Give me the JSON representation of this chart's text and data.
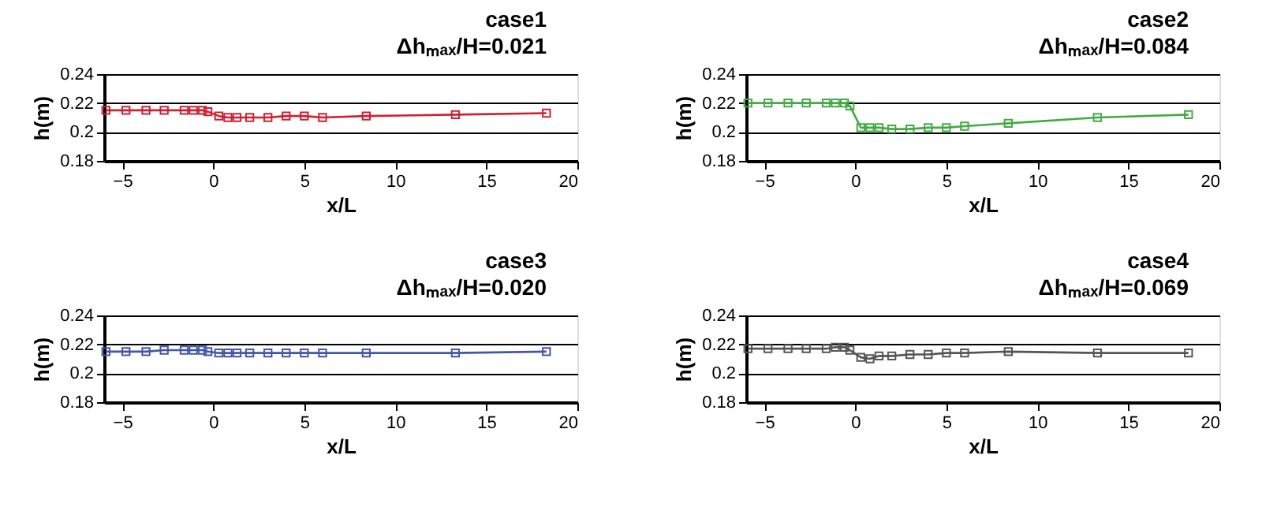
{
  "chart_data": [
    {
      "type": "line",
      "title": "case1",
      "subtitle": "Δhₘₐₓ/H=0.021",
      "xlabel": "x/L",
      "ylabel": "h(m)",
      "xlim": [
        -6,
        20
      ],
      "ylim": [
        0.18,
        0.24
      ],
      "xticks": [
        -5,
        0,
        5,
        10,
        15,
        20
      ],
      "yticks": [
        0.18,
        0.2,
        0.22,
        0.24
      ],
      "grid": "y",
      "marker": "square",
      "line_style": "solid",
      "series": [
        {
          "color": "#cc2233",
          "x": [
            -5.9,
            -4.8,
            -3.7,
            -2.7,
            -1.6,
            -1.1,
            -0.6,
            -0.3,
            0.3,
            0.8,
            1.3,
            2,
            3,
            4,
            5,
            6,
            8.4,
            13.3,
            18.3
          ],
          "values": [
            0.215,
            0.215,
            0.215,
            0.215,
            0.215,
            0.215,
            0.215,
            0.214,
            0.211,
            0.21,
            0.21,
            0.21,
            0.21,
            0.211,
            0.211,
            0.21,
            0.211,
            0.212,
            0.213
          ]
        }
      ]
    },
    {
      "type": "line",
      "title": "case2",
      "subtitle": "Δhₘₐₓ/H=0.084",
      "xlabel": "x/L",
      "ylabel": "h(m)",
      "xlim": [
        -6,
        20
      ],
      "ylim": [
        0.18,
        0.24
      ],
      "xticks": [
        -5,
        0,
        5,
        10,
        15,
        20
      ],
      "yticks": [
        0.18,
        0.2,
        0.22,
        0.24
      ],
      "grid": "y",
      "marker": "square",
      "line_style": "solid",
      "series": [
        {
          "color": "#44aa44",
          "x": [
            -5.9,
            -4.8,
            -3.7,
            -2.7,
            -1.6,
            -1.1,
            -0.6,
            -0.3,
            0.3,
            0.8,
            1.3,
            2,
            3,
            4,
            5,
            6,
            8.4,
            13.3,
            18.3
          ],
          "values": [
            0.22,
            0.22,
            0.22,
            0.22,
            0.22,
            0.22,
            0.22,
            0.218,
            0.203,
            0.203,
            0.203,
            0.202,
            0.202,
            0.203,
            0.203,
            0.204,
            0.206,
            0.21,
            0.212
          ]
        }
      ]
    },
    {
      "type": "line",
      "title": "case3",
      "subtitle": "Δhₘₐₓ/H=0.020",
      "xlabel": "x/L",
      "ylabel": "h(m)",
      "xlim": [
        -6,
        20
      ],
      "ylim": [
        0.18,
        0.24
      ],
      "xticks": [
        -5,
        0,
        5,
        10,
        15,
        20
      ],
      "yticks": [
        0.18,
        0.2,
        0.22,
        0.24
      ],
      "grid": "y",
      "marker": "square",
      "line_style": "solid",
      "series": [
        {
          "color": "#4455aa",
          "x": [
            -5.9,
            -4.8,
            -3.7,
            -2.7,
            -1.6,
            -1.1,
            -0.6,
            -0.3,
            0.3,
            0.8,
            1.3,
            2,
            3,
            4,
            5,
            6,
            8.4,
            13.3,
            18.3
          ],
          "values": [
            0.215,
            0.215,
            0.215,
            0.216,
            0.216,
            0.216,
            0.216,
            0.215,
            0.214,
            0.214,
            0.214,
            0.214,
            0.214,
            0.214,
            0.214,
            0.214,
            0.214,
            0.214,
            0.215
          ]
        }
      ]
    },
    {
      "type": "line",
      "title": "case4",
      "subtitle": "Δhₘₐₓ/H=0.069",
      "xlabel": "x/L",
      "ylabel": "h(m)",
      "xlim": [
        -6,
        20
      ],
      "ylim": [
        0.18,
        0.24
      ],
      "xticks": [
        -5,
        0,
        5,
        10,
        15,
        20
      ],
      "yticks": [
        0.18,
        0.2,
        0.22,
        0.24
      ],
      "grid": "y",
      "marker": "square",
      "line_style": "solid",
      "series": [
        {
          "color": "#555555",
          "x": [
            -5.9,
            -4.8,
            -3.7,
            -2.7,
            -1.6,
            -1.1,
            -0.6,
            -0.3,
            0.3,
            0.8,
            1.3,
            2,
            3,
            4,
            5,
            6,
            8.4,
            13.3,
            18.3
          ],
          "values": [
            0.217,
            0.217,
            0.217,
            0.217,
            0.217,
            0.218,
            0.218,
            0.216,
            0.211,
            0.21,
            0.212,
            0.212,
            0.213,
            0.213,
            0.214,
            0.214,
            0.215,
            0.214,
            0.214
          ]
        }
      ]
    }
  ]
}
